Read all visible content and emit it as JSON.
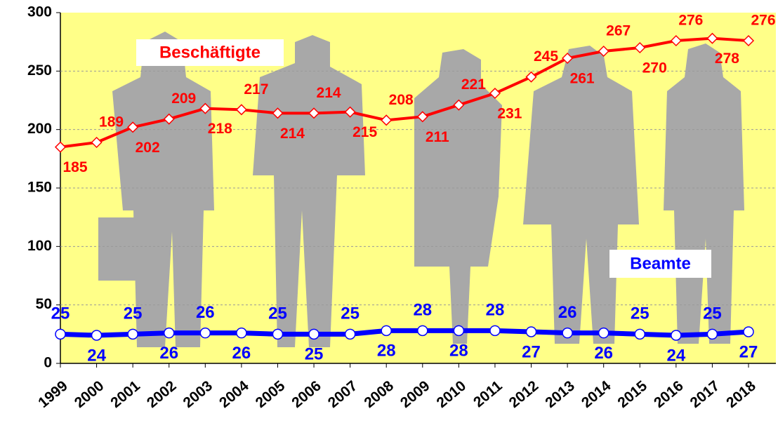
{
  "chart_data": {
    "type": "line",
    "categories": [
      "1999",
      "2000",
      "2001",
      "2002",
      "2003",
      "2004",
      "2005",
      "2006",
      "2007",
      "2008",
      "2009",
      "2010",
      "2011",
      "2012",
      "2013",
      "2014",
      "2015",
      "2016",
      "2017",
      "2018"
    ],
    "series": [
      {
        "name": "Beschäftigte",
        "color": "#ff0000",
        "values": [
          185,
          189,
          202,
          209,
          218,
          217,
          214,
          214,
          215,
          208,
          211,
          221,
          231,
          245,
          261,
          267,
          270,
          276,
          278,
          276
        ]
      },
      {
        "name": "Beamte",
        "color": "#0000ff",
        "values": [
          25,
          24,
          25,
          26,
          26,
          26,
          25,
          25,
          25,
          28,
          28,
          28,
          28,
          27,
          26,
          26,
          25,
          24,
          25,
          27
        ]
      }
    ],
    "ylim": [
      0,
      300
    ],
    "yticks": [
      0,
      50,
      100,
      150,
      200,
      250,
      300
    ],
    "grid": true
  }
}
